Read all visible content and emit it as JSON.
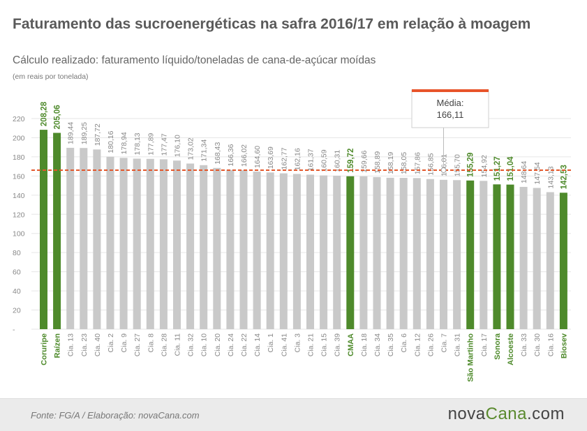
{
  "header": {
    "title": "Faturamento das sucroenergéticas na safra 2016/17 em relação à moagem",
    "subtitle": "Cálculo realizado: faturamento líquido/toneladas de cana-de-açúcar moídas",
    "unit_note": "(em reais por tonelada)"
  },
  "chart_data": {
    "type": "bar",
    "categories": [
      "Coruripe",
      "Raízen",
      "Cia. 13",
      "Cia. 23",
      "Cia. 40",
      "Cia. 2",
      "Cia. 9",
      "Cia. 27",
      "Cia. 8",
      "Cia. 28",
      "Cia. 11",
      "Cia. 32",
      "Cia. 10",
      "Cia. 20",
      "Cia. 24",
      "Cia. 22",
      "Cia. 14",
      "Cia. 1",
      "Cia. 41",
      "Cia. 3",
      "Cia. 21",
      "Cia. 15",
      "Cia. 39",
      "CMAA",
      "Cia. 18",
      "Cia. 34",
      "Cia. 35",
      "Cia. 6",
      "Cia. 12",
      "Cia. 26",
      "Cia. 7",
      "Cia. 31",
      "São Martinho",
      "Cia. 17",
      "Sonora",
      "Alcoeste",
      "Cia. 33",
      "Cia. 30",
      "Cia. 16",
      "Biosev"
    ],
    "values": [
      208.28,
      205.06,
      189.44,
      189.25,
      187.72,
      180.16,
      178.94,
      178.13,
      177.89,
      177.47,
      176.1,
      173.02,
      171.34,
      168.43,
      166.36,
      166.02,
      164.6,
      163.69,
      162.77,
      162.16,
      161.37,
      160.59,
      160.31,
      159.72,
      159.66,
      158.89,
      158.19,
      158.05,
      157.86,
      156.85,
      156.01,
      155.7,
      155.29,
      154.92,
      151.27,
      151.04,
      148.64,
      147.54,
      143.13,
      142.53
    ],
    "value_labels": [
      "208,28",
      "205,06",
      "189,44",
      "189,25",
      "187,72",
      "180,16",
      "178,94",
      "178,13",
      "177,89",
      "177,47",
      "176,10",
      "173,02",
      "171,34",
      "168,43",
      "166,36",
      "166,02",
      "164,60",
      "163,69",
      "162,77",
      "162,16",
      "161,37",
      "160,59",
      "160,31",
      "159,72",
      "159,66",
      "158,89",
      "158,19",
      "158,05",
      "157,86",
      "156,85",
      "156,01",
      "155,70",
      "155,29",
      "154,92",
      "151,27",
      "151,04",
      "148,64",
      "147,54",
      "143,13",
      "142,53"
    ],
    "highlighted": [
      true,
      true,
      false,
      false,
      false,
      false,
      false,
      false,
      false,
      false,
      false,
      false,
      false,
      false,
      false,
      false,
      false,
      false,
      false,
      false,
      false,
      false,
      false,
      true,
      false,
      false,
      false,
      false,
      false,
      false,
      false,
      false,
      true,
      false,
      true,
      true,
      false,
      false,
      false,
      true
    ],
    "ylim": [
      0,
      220
    ],
    "y_ticks": [
      0,
      20,
      40,
      60,
      80,
      100,
      120,
      140,
      160,
      180,
      200,
      220
    ],
    "y_tick_labels": [
      "-",
      "20",
      "40",
      "60",
      "80",
      "100",
      "120",
      "140",
      "160",
      "180",
      "200",
      "220"
    ],
    "grid": true,
    "average": {
      "value": 166.11,
      "label": "Média:",
      "value_label": "166,11",
      "anchor_category": "Cia. 7"
    },
    "colors": {
      "highlight": "#4e8a2b",
      "normal": "#c9c9c9",
      "average_line": "#e2572b",
      "callout_top": "#e8542a"
    }
  },
  "footer": {
    "source": "Fonte:  FG/A  / Elaboração:  novaCana.com",
    "logo_part1": "nova",
    "logo_part2": "Cana",
    "logo_part3": ".com"
  }
}
